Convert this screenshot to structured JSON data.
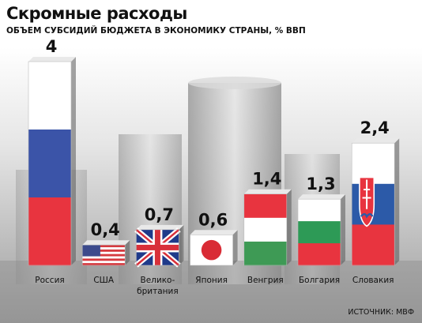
{
  "header": {
    "title": "Скромные расходы",
    "subtitle": "ОБЪЕМ СУБСИДИЙ БЮДЖЕТА В ЭКОНОМИКУ СТРАНЫ, % ВВП"
  },
  "source": "ИСТОЧНИК: МВФ",
  "chart_data": {
    "type": "bar",
    "title": "Скромные расходы",
    "subtitle": "ОБЪЕМ СУБСИДИЙ БЮДЖЕТА В ЭКОНОМИКУ СТРАНЫ, % ВВП",
    "categories": [
      "Россия",
      "США",
      "Велико-британия",
      "Япония",
      "Венгрия",
      "Болгария",
      "Словакия"
    ],
    "category_lines": [
      [
        "Россия"
      ],
      [
        "США"
      ],
      [
        "Велико-",
        "британия"
      ],
      [
        "Япония"
      ],
      [
        "Венгрия"
      ],
      [
        "Болгария"
      ],
      [
        "Словакия"
      ]
    ],
    "values": [
      4,
      0.4,
      0.7,
      0.6,
      1.4,
      1.3,
      2.4
    ],
    "value_labels": [
      "4",
      "0,4",
      "0,7",
      "0,6",
      "1,4",
      "1,3",
      "2,4"
    ],
    "flags": [
      "russia-flag",
      "usa-flag",
      "uk-flag",
      "japan-flag",
      "hungary-flag",
      "bulgaria-flag",
      "slovakia-flag"
    ],
    "ylim": [
      0,
      4
    ],
    "grid": false,
    "legend": "none",
    "xlabel": "",
    "ylabel": ""
  },
  "colors": {
    "russia": [
      "#ffffff",
      "#3b54a8",
      "#e8343f"
    ],
    "hungary": [
      "#e8343f",
      "#ffffff",
      "#3e9a55"
    ],
    "bulgaria": [
      "#ffffff",
      "#2d9a56",
      "#e8343f"
    ],
    "slovakia": [
      "#ffffff",
      "#2c5aa8",
      "#e8343f"
    ],
    "usa_red": "#d63a3f",
    "usa_blue": "#3c4a8c",
    "uk_blue": "#1f3a8a",
    "uk_red": "#d8303a",
    "japan_red": "#d92b35"
  }
}
